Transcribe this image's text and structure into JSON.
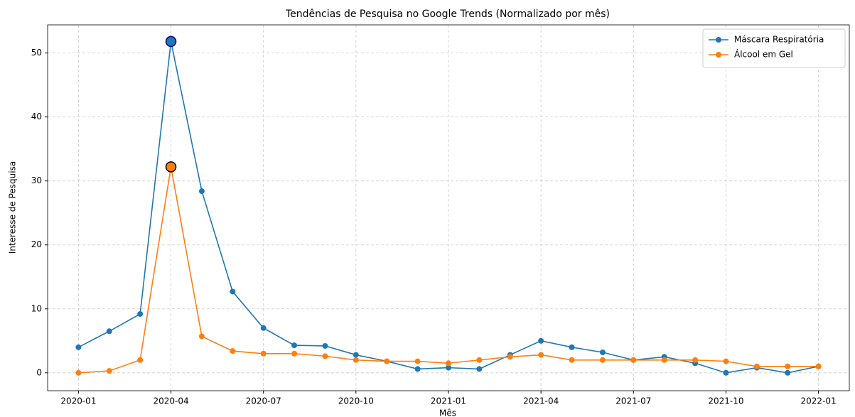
{
  "chart_data": {
    "type": "line",
    "title": "Tendências de Pesquisa no Google Trends (Normalizado por mês)",
    "xlabel": "Mês",
    "ylabel": "Interesse de Pesquisa",
    "x": [
      "2020-01",
      "2020-02",
      "2020-03",
      "2020-04",
      "2020-05",
      "2020-06",
      "2020-07",
      "2020-08",
      "2020-09",
      "2020-10",
      "2020-11",
      "2020-12",
      "2021-01",
      "2021-02",
      "2021-03",
      "2021-04",
      "2021-05",
      "2021-06",
      "2021-07",
      "2021-08",
      "2021-09",
      "2021-10",
      "2021-11",
      "2021-12",
      "2022-01"
    ],
    "series": [
      {
        "name": "Máscara Respiratória",
        "color": "#1f77b4",
        "values": [
          4.0,
          6.5,
          9.2,
          51.8,
          28.4,
          12.7,
          7.0,
          4.3,
          4.2,
          2.8,
          1.8,
          0.6,
          0.8,
          0.6,
          2.8,
          5.0,
          4.0,
          3.2,
          2.0,
          2.5,
          1.5,
          0.0,
          0.8,
          0.0,
          1.0
        ]
      },
      {
        "name": "Álcool em Gel",
        "color": "#ff7f0e",
        "values": [
          0.0,
          0.3,
          2.0,
          32.2,
          5.7,
          3.4,
          3.0,
          3.0,
          2.6,
          2.0,
          1.8,
          1.8,
          1.5,
          2.0,
          2.5,
          2.8,
          2.0,
          2.0,
          2.0,
          2.0,
          2.0,
          1.8,
          1.0,
          1.0,
          1.0
        ]
      }
    ],
    "xlim": [
      "2019-12",
      "2022-02"
    ],
    "xticks": [
      "2020-01",
      "2020-04",
      "2020-07",
      "2020-10",
      "2021-01",
      "2021-04",
      "2021-07",
      "2021-10",
      "2022-01"
    ],
    "ylim": [
      -2.8,
      54.4
    ],
    "yticks": [
      0,
      10,
      20,
      30,
      40,
      50
    ],
    "grid": true,
    "legend": "upper right",
    "peak_markers": true
  }
}
